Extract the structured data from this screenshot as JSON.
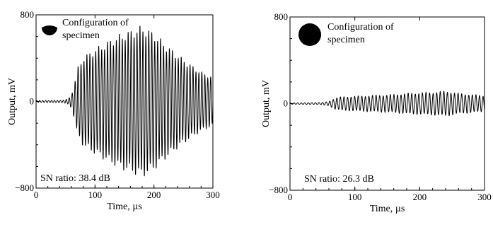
{
  "chart_data": [
    {
      "type": "line",
      "title": "",
      "xlabel": "Time, µs",
      "ylabel": "Output, mV",
      "xlim": [
        0,
        300
      ],
      "ylim": [
        -800,
        800
      ],
      "x_ticks": [
        0,
        100,
        200,
        300
      ],
      "y_ticks": [
        -800,
        0,
        800
      ],
      "x_tick_labels": [
        "0",
        "100",
        "200",
        "300"
      ],
      "y_tick_labels": [
        "−800",
        "0",
        "800"
      ],
      "grid": false,
      "legend": "none",
      "annotation_text": "Configuration of specimen",
      "annotation_line1": "Configuration of",
      "annotation_line2": "specimen",
      "sn_label": "SN ratio: 38.4 dB",
      "sn_ratio_db": 38.4,
      "specimen_shape": "half-disc",
      "signal": {
        "period_us": 5.0,
        "envelope_t": [
          0,
          45,
          55,
          60,
          65,
          70,
          80,
          100,
          120,
          140,
          160,
          180,
          200,
          220,
          240,
          260,
          280,
          300
        ],
        "envelope_mv": [
          8,
          10,
          25,
          60,
          150,
          290,
          390,
          460,
          520,
          580,
          620,
          660,
          600,
          500,
          410,
          330,
          260,
          210
        ]
      }
    },
    {
      "type": "line",
      "title": "",
      "xlabel": "Time, µs",
      "ylabel": "Output, mV",
      "xlim": [
        0,
        300
      ],
      "ylim": [
        -800,
        800
      ],
      "x_ticks": [
        0,
        100,
        200,
        300
      ],
      "y_ticks": [
        -800,
        0,
        800
      ],
      "x_tick_labels": [
        "0",
        "100",
        "200",
        "300"
      ],
      "y_tick_labels": [
        "−800",
        "0",
        "800"
      ],
      "grid": false,
      "legend": "none",
      "annotation_text": "Configuration of specimen",
      "annotation_line1": "Configuration of",
      "annotation_line2": "specimen",
      "sn_label": "SN ratio: 26.3 dB",
      "sn_ratio_db": 26.3,
      "specimen_shape": "disc",
      "signal": {
        "period_us": 5.5,
        "envelope_t": [
          0,
          40,
          50,
          60,
          70,
          80,
          100,
          120,
          140,
          160,
          180,
          200,
          220,
          240,
          260,
          280,
          300
        ],
        "envelope_mv": [
          6,
          8,
          10,
          20,
          50,
          60,
          65,
          70,
          75,
          80,
          90,
          95,
          100,
          110,
          90,
          80,
          70
        ]
      }
    }
  ]
}
